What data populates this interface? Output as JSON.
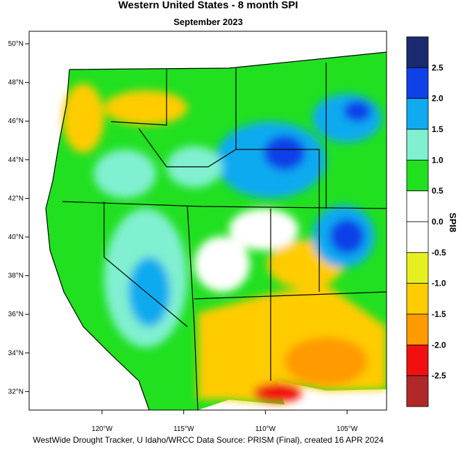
{
  "header": {
    "title": "Western United States - 8 month SPI",
    "subtitle": "September 2023"
  },
  "map": {
    "lat_labels": [
      "50°N",
      "48°N",
      "46°N",
      "44°N",
      "42°N",
      "40°N",
      "38°N",
      "36°N",
      "34°N",
      "32°N"
    ],
    "lon_labels": [
      "120°W",
      "115°W",
      "110°W",
      "105°W"
    ]
  },
  "legend": {
    "title": "SPI8",
    "labels": [
      "2.5",
      "2.0",
      "1.5",
      "1.0",
      "0.5",
      "0.0",
      "-0.5",
      "-1.0",
      "-1.5",
      "-2.0",
      "-2.5"
    ],
    "colors": [
      "#1b2a6e",
      "#1040e8",
      "#10aaf0",
      "#80f0d0",
      "#20e020",
      "#ffffff",
      "#ffffff",
      "#e6f020",
      "#ffcc00",
      "#ff9a00",
      "#f01010",
      "#b02828"
    ]
  },
  "footer": "WestWide Drought Tracker, U Idaho/WRCC Data Source: PRISM (Final), created 16 APR 2024"
}
